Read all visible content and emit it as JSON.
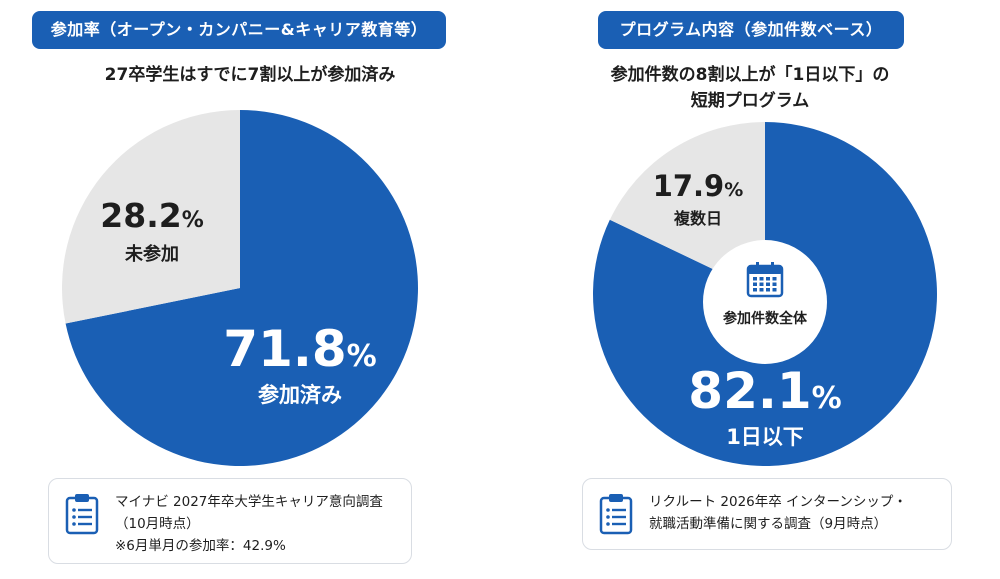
{
  "chart_data": [
    {
      "type": "pie",
      "header": "参加率（オープン・カンパニー&キャリア教育等）",
      "title": "27卒学生はすでに7割以上が参加済み",
      "slices": [
        {
          "label": "参加済み",
          "value": 71.8,
          "value_text": "71.8",
          "color": "#1a5fb4"
        },
        {
          "label": "未参加",
          "value": 28.2,
          "value_text": "28.2",
          "color": "#e6e6e6"
        }
      ],
      "unit": "%",
      "source_lines": [
        "マイナビ 2027年卒大学生キャリア意向調査",
        "（10月時点）",
        "※6月単月の参加率：42.9%"
      ]
    },
    {
      "type": "pie",
      "header": "プログラム内容（参加件数ベース）",
      "title_lines": [
        "参加件数の8割以上が「1日以下」の",
        "短期プログラム"
      ],
      "slices": [
        {
          "label": "1日以下",
          "value": 82.1,
          "value_text": "82.1",
          "color": "#1a5fb4"
        },
        {
          "label": "複数日",
          "value": 17.9,
          "value_text": "17.9",
          "color": "#e6e6e6"
        }
      ],
      "unit": "%",
      "center_label": "参加件数全体",
      "center_icon": "calendar-icon",
      "source_lines": [
        "リクルート 2026年卒 インターンシップ・",
        "就職活動準備に関する調査（9月時点）"
      ]
    }
  ],
  "icons": {
    "note": "document-icon"
  },
  "colors": {
    "primary": "#1a5fb4",
    "muted": "#e6e6e6",
    "text": "#1e1e1e"
  }
}
